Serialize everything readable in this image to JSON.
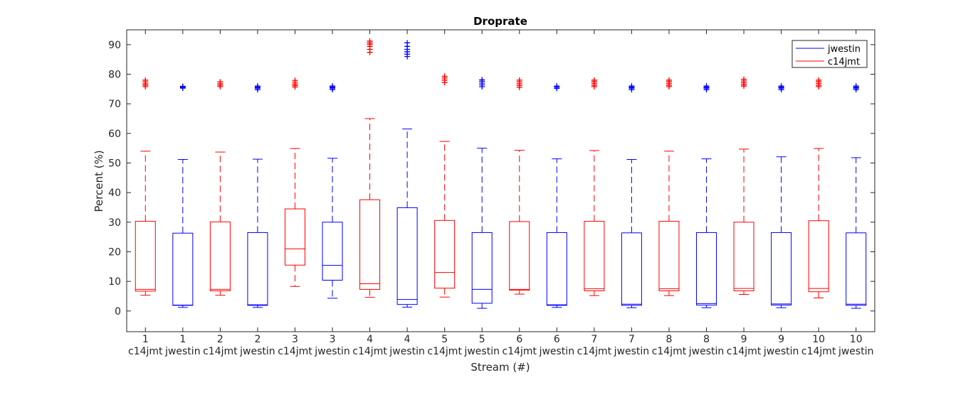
{
  "chart_data": {
    "type": "box",
    "title": "Droprate",
    "xlabel": "Stream (#)",
    "ylabel": "Percent (%)",
    "ylim": [
      -7,
      95
    ],
    "yticks": [
      0,
      10,
      20,
      30,
      40,
      50,
      60,
      70,
      80,
      90
    ],
    "grid": false,
    "legend_position": "top-right",
    "colors": {
      "jwestin": "#0000ff",
      "c14jmt": "#ff0000"
    },
    "legend": [
      {
        "name": "jwestin",
        "color": "#0000ff"
      },
      {
        "name": "c14jmt",
        "color": "#ff0000"
      }
    ],
    "boxes": [
      {
        "stream": "1",
        "group": "c14jmt",
        "whisker_low": 5.3,
        "q1": 6.7,
        "median": 7.3,
        "q3": 30.3,
        "whisker_high": 54.0,
        "outliers": [
          75.8,
          76.3,
          76.8,
          77.4,
          78.0
        ]
      },
      {
        "stream": "1",
        "group": "jwestin",
        "whisker_low": 1.2,
        "q1": 1.9,
        "median": 2.0,
        "q3": 26.3,
        "whisker_high": 51.2,
        "outliers": [
          75.3,
          75.6,
          75.9
        ]
      },
      {
        "stream": "2",
        "group": "c14jmt",
        "whisker_low": 5.3,
        "q1": 6.8,
        "median": 7.3,
        "q3": 30.1,
        "whisker_high": 53.7,
        "outliers": [
          75.8,
          76.3,
          76.8,
          77.4
        ]
      },
      {
        "stream": "2",
        "group": "jwestin",
        "whisker_low": 1.2,
        "q1": 1.9,
        "median": 2.1,
        "q3": 26.5,
        "whisker_high": 51.3,
        "outliers": [
          74.8,
          75.3,
          75.6,
          76.0
        ]
      },
      {
        "stream": "3",
        "group": "c14jmt",
        "whisker_low": 8.3,
        "q1": 15.5,
        "median": 21.0,
        "q3": 34.5,
        "whisker_high": 54.9,
        "outliers": [
          75.7,
          76.2,
          76.7,
          77.3,
          77.9
        ]
      },
      {
        "stream": "3",
        "group": "jwestin",
        "whisker_low": 4.3,
        "q1": 10.4,
        "median": 15.4,
        "q3": 30.0,
        "whisker_high": 51.6,
        "outliers": [
          74.8,
          75.3,
          75.6,
          76.0
        ]
      },
      {
        "stream": "4",
        "group": "c14jmt",
        "whisker_low": 4.6,
        "q1": 7.3,
        "median": 9.2,
        "q3": 37.6,
        "whisker_high": 65.0,
        "outliers": [
          87.4,
          88.4,
          89.4,
          90.1,
          90.6,
          91.2
        ]
      },
      {
        "stream": "4",
        "group": "jwestin",
        "whisker_low": 1.3,
        "q1": 2.2,
        "median": 3.9,
        "q3": 34.9,
        "whisker_high": 61.5,
        "outliers": [
          86.0,
          86.8,
          87.6,
          88.4,
          89.4,
          90.6
        ]
      },
      {
        "stream": "5",
        "group": "c14jmt",
        "whisker_low": 4.7,
        "q1": 7.7,
        "median": 13.0,
        "q3": 30.6,
        "whisker_high": 57.3,
        "outliers": [
          77.2,
          78.0,
          78.7,
          79.3
        ]
      },
      {
        "stream": "5",
        "group": "jwestin",
        "whisker_low": 0.9,
        "q1": 2.6,
        "median": 7.3,
        "q3": 26.5,
        "whisker_high": 55.0,
        "outliers": [
          75.8,
          76.4,
          77.0,
          77.6,
          78.1
        ]
      },
      {
        "stream": "6",
        "group": "c14jmt",
        "whisker_low": 5.7,
        "q1": 7.0,
        "median": 7.3,
        "q3": 30.2,
        "whisker_high": 54.3,
        "outliers": [
          75.6,
          76.2,
          76.8,
          77.4,
          78.0
        ]
      },
      {
        "stream": "6",
        "group": "jwestin",
        "whisker_low": 1.2,
        "q1": 1.9,
        "median": 2.1,
        "q3": 26.5,
        "whisker_high": 51.4,
        "outliers": [
          75.2,
          75.6,
          76.0
        ]
      },
      {
        "stream": "7",
        "group": "c14jmt",
        "whisker_low": 5.2,
        "q1": 6.8,
        "median": 7.5,
        "q3": 30.3,
        "whisker_high": 54.2,
        "outliers": [
          75.8,
          76.3,
          76.9,
          77.5,
          78.0
        ]
      },
      {
        "stream": "7",
        "group": "jwestin",
        "whisker_low": 1.1,
        "q1": 1.9,
        "median": 2.3,
        "q3": 26.4,
        "whisker_high": 51.2,
        "outliers": [
          74.8,
          75.3,
          75.6,
          76.0
        ]
      },
      {
        "stream": "8",
        "group": "c14jmt",
        "whisker_low": 5.2,
        "q1": 6.8,
        "median": 7.5,
        "q3": 30.3,
        "whisker_high": 54.0,
        "outliers": [
          75.8,
          76.3,
          76.9,
          77.5,
          78.0
        ]
      },
      {
        "stream": "8",
        "group": "jwestin",
        "whisker_low": 1.1,
        "q1": 2.0,
        "median": 2.5,
        "q3": 26.5,
        "whisker_high": 51.4,
        "outliers": [
          74.8,
          75.3,
          75.6,
          76.0
        ]
      },
      {
        "stream": "9",
        "group": "c14jmt",
        "whisker_low": 5.6,
        "q1": 6.8,
        "median": 7.6,
        "q3": 30.0,
        "whisker_high": 54.7,
        "outliers": [
          76.0,
          76.5,
          77.1,
          77.7,
          78.3
        ]
      },
      {
        "stream": "9",
        "group": "jwestin",
        "whisker_low": 1.1,
        "q1": 2.0,
        "median": 2.4,
        "q3": 26.5,
        "whisker_high": 52.1,
        "outliers": [
          74.8,
          75.3,
          75.6,
          76.0
        ]
      },
      {
        "stream": "10",
        "group": "c14jmt",
        "whisker_low": 4.4,
        "q1": 6.5,
        "median": 7.6,
        "q3": 30.5,
        "whisker_high": 54.9,
        "outliers": [
          75.8,
          76.3,
          76.9,
          77.5,
          78.0
        ]
      },
      {
        "stream": "10",
        "group": "jwestin",
        "whisker_low": 0.9,
        "q1": 1.9,
        "median": 2.3,
        "q3": 26.4,
        "whisker_high": 51.8,
        "outliers": [
          74.8,
          75.3,
          75.6,
          76.0
        ]
      }
    ]
  }
}
